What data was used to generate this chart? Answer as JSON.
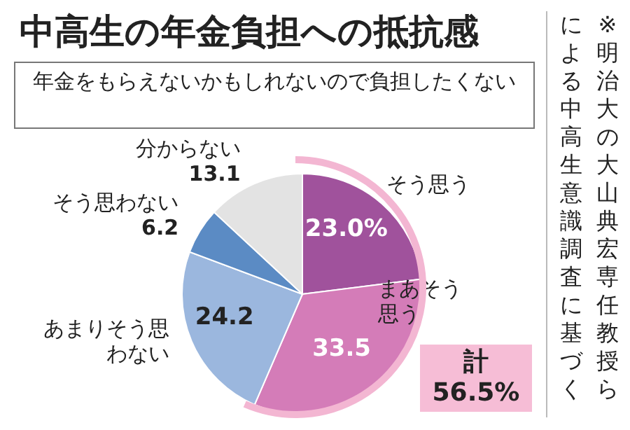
{
  "chart_data": {
    "type": "pie",
    "title": "中高生の年金負担への抵抗感",
    "subtitle": "年金をもらえないかもしれないので負担したくない",
    "categories": [
      "そう思う",
      "まあそう思う",
      "あまりそう思わない",
      "そう思わない",
      "分からない"
    ],
    "values": [
      23.0,
      33.5,
      24.2,
      6.2,
      13.1
    ],
    "colors": [
      "#a0529c",
      "#d47cb8",
      "#9bb7de",
      "#5b8bc4",
      "#e3e3e3"
    ],
    "value_labels": [
      "23.0%",
      "33.5",
      "24.2",
      "6.2",
      "13.1"
    ],
    "annotations": [
      "計56.5%",
      "※明治大の大山典宏専任教授らによる中高生意識調査に基づく"
    ]
  }
}
